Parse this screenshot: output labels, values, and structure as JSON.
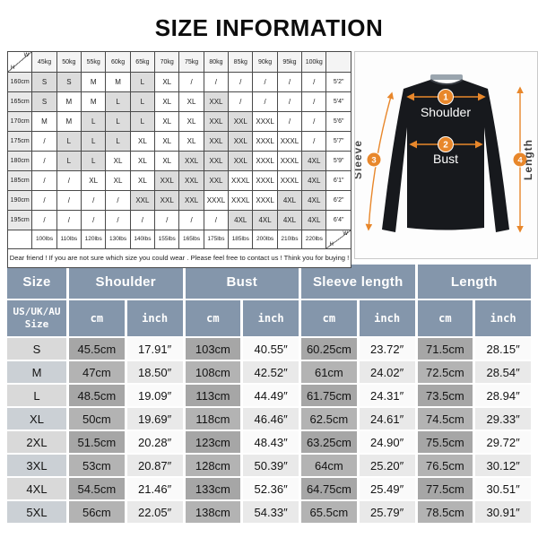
{
  "title": "SIZE INFORMATION",
  "size_chart": {
    "corner_weight_label": "W",
    "corner_height_label": "H",
    "weights": [
      "45kg",
      "50kg",
      "55kg",
      "60kg",
      "65kg",
      "70kg",
      "75kg",
      "80kg",
      "85kg",
      "90kg",
      "95kg",
      "100kg"
    ],
    "rows": [
      {
        "height": "160cm",
        "feet": "5'2\"",
        "sizes": [
          "S",
          "S",
          "M",
          "M",
          "L",
          "XL",
          "/",
          "/",
          "/",
          "/",
          "/",
          "/"
        ]
      },
      {
        "height": "165cm",
        "feet": "5'4\"",
        "sizes": [
          "S",
          "M",
          "M",
          "L",
          "L",
          "XL",
          "XL",
          "XXL",
          "/",
          "/",
          "/",
          "/"
        ]
      },
      {
        "height": "170cm",
        "feet": "5'6\"",
        "sizes": [
          "M",
          "M",
          "L",
          "L",
          "L",
          "XL",
          "XL",
          "XXL",
          "XXL",
          "XXXL",
          "/",
          "/"
        ]
      },
      {
        "height": "175cm",
        "feet": "5'7\"",
        "sizes": [
          "/",
          "L",
          "L",
          "L",
          "XL",
          "XL",
          "XL",
          "XXL",
          "XXL",
          "XXXL",
          "XXXL",
          "/"
        ]
      },
      {
        "height": "180cm",
        "feet": "5'9\"",
        "sizes": [
          "/",
          "L",
          "L",
          "XL",
          "XL",
          "XL",
          "XXL",
          "XXL",
          "XXL",
          "XXXL",
          "XXXL",
          "4XL"
        ]
      },
      {
        "height": "185cm",
        "feet": "6'1\"",
        "sizes": [
          "/",
          "/",
          "XL",
          "XL",
          "XL",
          "XXL",
          "XXL",
          "XXL",
          "XXXL",
          "XXXL",
          "XXXL",
          "4XL"
        ]
      },
      {
        "height": "190cm",
        "feet": "6'2\"",
        "sizes": [
          "/",
          "/",
          "/",
          "/",
          "XXL",
          "XXL",
          "XXL",
          "XXXL",
          "XXXL",
          "XXXL",
          "4XL",
          "4XL"
        ]
      },
      {
        "height": "195cm",
        "feet": "6'4\"",
        "sizes": [
          "/",
          "/",
          "/",
          "/",
          "/",
          "/",
          "/",
          "/",
          "4XL",
          "4XL",
          "4XL",
          "4XL"
        ]
      }
    ],
    "pounds": [
      "100lbs",
      "110lbs",
      "120lbs",
      "130lbs",
      "140lbs",
      "155lbs",
      "165lbs",
      "175lbs",
      "185lbs",
      "200lbs",
      "210lbs",
      "220lbs"
    ],
    "shaded_sizes": [
      "S",
      "L",
      "XXL",
      "4XL"
    ],
    "note": "Dear friend ! If you are not sure which size you could wear . Please feel free to contact us ! Think you for buying !"
  },
  "diagram": {
    "accent_color": "#e8872b",
    "markers": {
      "shoulder": "1",
      "bust": "2",
      "sleeve": "3",
      "length": "4"
    },
    "labels": {
      "shoulder": "Shoulder",
      "bust": "Bust",
      "sleeve": "Sleeve",
      "length": "Length"
    }
  },
  "measure_table": {
    "header_color": "#8496ab",
    "columns": [
      "Size",
      "Shoulder",
      "Bust",
      "Sleeve length",
      "Length"
    ],
    "size_system_label": "US/UK/AU Size",
    "unit_cm": "cm",
    "unit_inch": "inch",
    "rows": [
      {
        "size": "S",
        "values": [
          "45.5cm",
          "17.91″",
          "103cm",
          "40.55″",
          "60.25cm",
          "23.72″",
          "71.5cm",
          "28.15″"
        ]
      },
      {
        "size": "M",
        "values": [
          "47cm",
          "18.50″",
          "108cm",
          "42.52″",
          "61cm",
          "24.02″",
          "72.5cm",
          "28.54″"
        ]
      },
      {
        "size": "L",
        "values": [
          "48.5cm",
          "19.09″",
          "113cm",
          "44.49″",
          "61.75cm",
          "24.31″",
          "73.5cm",
          "28.94″"
        ]
      },
      {
        "size": "XL",
        "values": [
          "50cm",
          "19.69″",
          "118cm",
          "46.46″",
          "62.5cm",
          "24.61″",
          "74.5cm",
          "29.33″"
        ]
      },
      {
        "size": "2XL",
        "values": [
          "51.5cm",
          "20.28″",
          "123cm",
          "48.43″",
          "63.25cm",
          "24.90″",
          "75.5cm",
          "29.72″"
        ]
      },
      {
        "size": "3XL",
        "values": [
          "53cm",
          "20.87″",
          "128cm",
          "50.39″",
          "64cm",
          "25.20″",
          "76.5cm",
          "30.12″"
        ]
      },
      {
        "size": "4XL",
        "values": [
          "54.5cm",
          "21.46″",
          "133cm",
          "52.36″",
          "64.75cm",
          "25.49″",
          "77.5cm",
          "30.51″"
        ]
      },
      {
        "size": "5XL",
        "values": [
          "56cm",
          "22.05″",
          "138cm",
          "54.33″",
          "65.5cm",
          "25.79″",
          "78.5cm",
          "30.91″"
        ]
      }
    ]
  }
}
